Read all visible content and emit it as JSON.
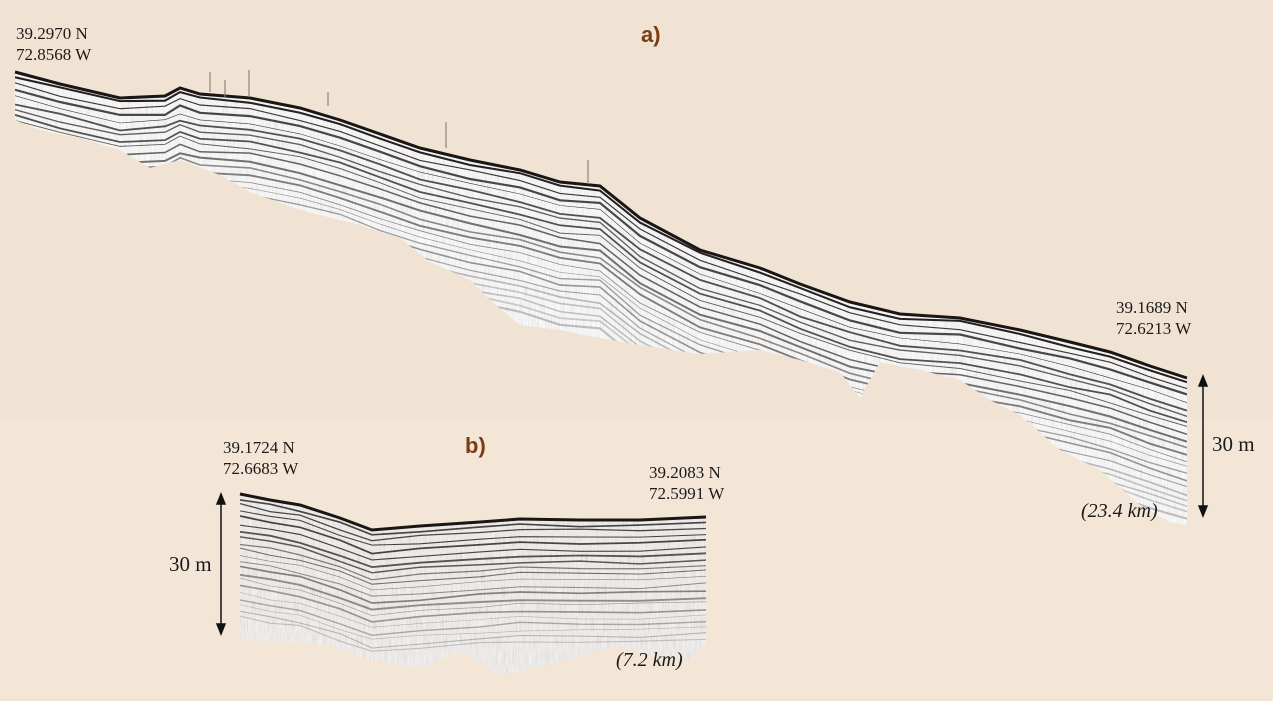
{
  "panel_a": {
    "label": "a)",
    "start_coord": {
      "lat": "39.2970 N",
      "lon": "72.8568 W"
    },
    "end_coord": {
      "lat": "39.1689 N",
      "lon": "72.6213 W"
    },
    "distance": "(23.4 km)",
    "scale": "30 m"
  },
  "panel_b": {
    "label": "b)",
    "start_coord": {
      "lat": "39.1724 N",
      "lon": "72.6683 W"
    },
    "end_coord": {
      "lat": "39.2083 N",
      "lon": "72.5991 W"
    },
    "distance": "(7.2 km)",
    "scale": "30 m"
  },
  "colors": {
    "background": "#f1e3d3",
    "label": "#7a3c12",
    "seismic": "#2a2522"
  }
}
